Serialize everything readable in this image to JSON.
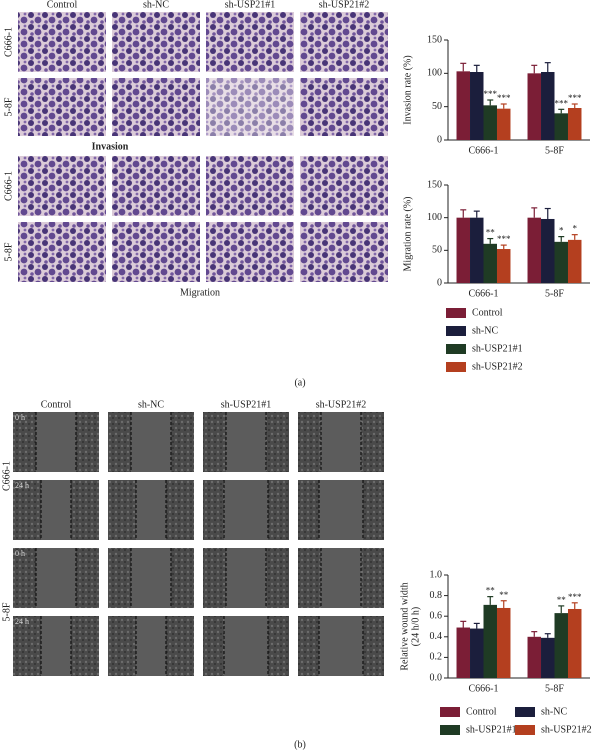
{
  "panel_a": {
    "label": "(a)",
    "columns": [
      "Control",
      "sh-NC",
      "sh-USP21#1",
      "sh-USP21#2"
    ],
    "rows": [
      "C666-1",
      "5-8F",
      "C666-1",
      "5-8F"
    ],
    "captions": [
      "Invasion",
      "Migration"
    ]
  },
  "panel_b": {
    "label": "(b)",
    "columns": [
      "Control",
      "sh-NC",
      "sh-USP21#1",
      "sh-USP21#2"
    ],
    "rows": [
      "C666-1",
      "5-8F"
    ],
    "times": [
      "0 h",
      "24 h",
      "0 h",
      "24 h"
    ]
  },
  "chart_data": [
    {
      "type": "bar",
      "ylabel": "Invasion rate (%)",
      "categories": [
        "C666-1",
        "5-8F"
      ],
      "ylim": [
        0,
        150
      ],
      "yticks": [
        0,
        50,
        100,
        150
      ],
      "legend": "none",
      "series": [
        {
          "name": "Control",
          "color": "#7b1e36",
          "values": [
            103,
            100
          ],
          "errors": [
            12,
            12
          ]
        },
        {
          "name": "sh-NC",
          "color": "#1b1e3c",
          "values": [
            102,
            102
          ],
          "errors": [
            10,
            14
          ]
        },
        {
          "name": "sh-USP21#1",
          "color": "#1f3b24",
          "values": [
            52,
            40
          ],
          "errors": [
            8,
            6
          ],
          "sig": [
            "***",
            "***"
          ]
        },
        {
          "name": "sh-USP21#2",
          "color": "#b43f1f",
          "values": [
            47,
            48
          ],
          "errors": [
            7,
            6
          ],
          "sig": [
            "***",
            "***"
          ]
        }
      ]
    },
    {
      "type": "bar",
      "ylabel": "Migration rate (%)",
      "categories": [
        "C666-1",
        "5-8F"
      ],
      "ylim": [
        0,
        150
      ],
      "yticks": [
        0,
        50,
        100,
        150
      ],
      "legend": "below",
      "legend_columns": 1,
      "series": [
        {
          "name": "Control",
          "color": "#7b1e36",
          "values": [
            100,
            100
          ],
          "errors": [
            12,
            15
          ]
        },
        {
          "name": "sh-NC",
          "color": "#1b1e3c",
          "values": [
            100,
            98
          ],
          "errors": [
            10,
            16
          ]
        },
        {
          "name": "sh-USP21#1",
          "color": "#1f3b24",
          "values": [
            60,
            63
          ],
          "errors": [
            8,
            8
          ],
          "sig": [
            "**",
            "*"
          ]
        },
        {
          "name": "sh-USP21#2",
          "color": "#b43f1f",
          "values": [
            52,
            66
          ],
          "errors": [
            6,
            8
          ],
          "sig": [
            "***",
            "*"
          ]
        }
      ]
    },
    {
      "type": "bar",
      "ylabel": [
        "Relative wound width",
        "(24 h/0 h)"
      ],
      "categories": [
        "C666-1",
        "5-8F"
      ],
      "ylim": [
        0,
        1
      ],
      "yticks": [
        {
          "value": 0,
          "label": "0.0"
        },
        0.2,
        0.4,
        0.6,
        0.8,
        {
          "value": 1,
          "label": "1.0"
        }
      ],
      "legend": "below",
      "legend_columns": 2,
      "series": [
        {
          "name": "Control",
          "color": "#7b1e36",
          "values": [
            0.49,
            0.4
          ],
          "errors": [
            0.06,
            0.05
          ]
        },
        {
          "name": "sh-NC",
          "color": "#1b1e3c",
          "values": [
            0.48,
            0.39
          ],
          "errors": [
            0.05,
            0.04
          ]
        },
        {
          "name": "sh-USP21#1",
          "color": "#1f3b24",
          "values": [
            0.71,
            0.63
          ],
          "errors": [
            0.08,
            0.07
          ],
          "sig": [
            "**",
            "**"
          ]
        },
        {
          "name": "sh-USP21#2",
          "color": "#b43f1f",
          "values": [
            0.68,
            0.67
          ],
          "errors": [
            0.07,
            0.06
          ],
          "sig": [
            "**",
            "***"
          ]
        }
      ]
    }
  ]
}
